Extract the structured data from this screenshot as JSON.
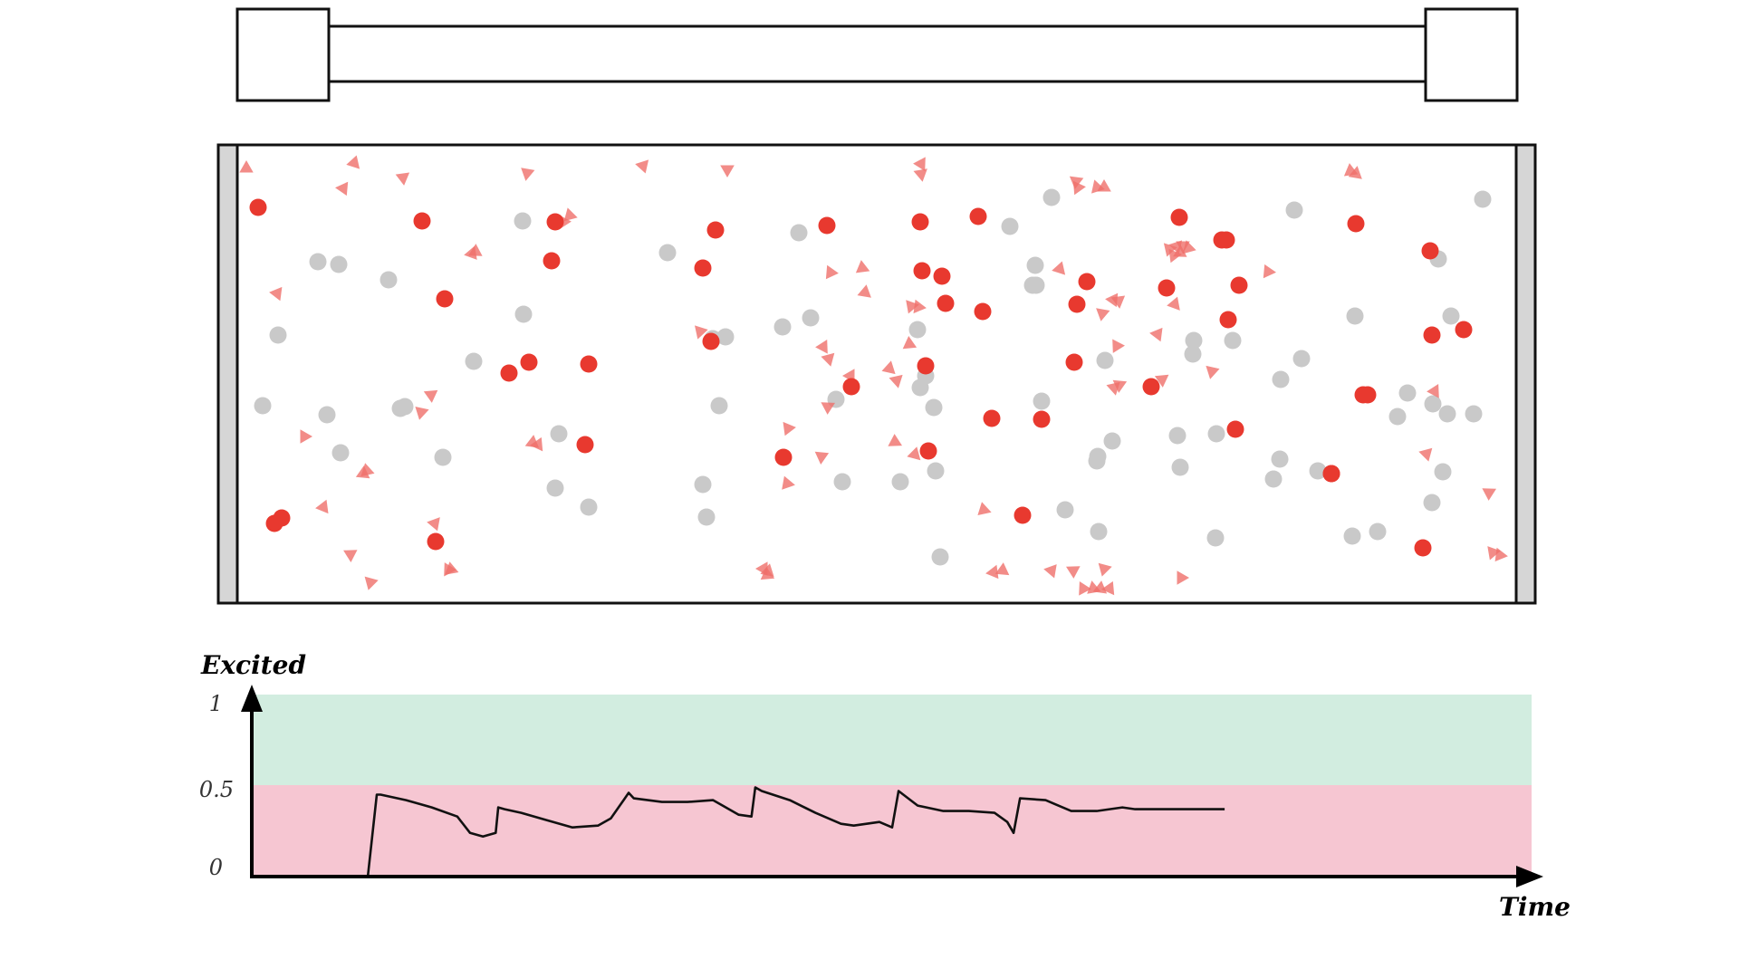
{
  "colors": {
    "background": "#ffffff",
    "outline": "#111111",
    "wall_fill": "#d6d6d6",
    "excited_particle": "#e8392f",
    "ground_particle": "#c9c9c9",
    "photon": "#ef6f6a",
    "upper_band": "#d2ede0",
    "lower_band": "#f6c6d2",
    "trace": "#111111"
  },
  "particles": {
    "excited_count": 49,
    "ground_count": 72,
    "photon_count": 88
  },
  "graph": {
    "y_axis_title": "Excited",
    "x_axis_title": "Time",
    "y_ticks": [
      "1",
      "0.5",
      "0"
    ],
    "threshold": 0.5,
    "y_range": [
      0,
      1
    ]
  },
  "chart_data": {
    "type": "line",
    "title": "",
    "xlabel": "Time",
    "ylabel": "Excited",
    "ylim": [
      0,
      1
    ],
    "xlim": [
      0,
      1
    ],
    "grid": false,
    "legend": "none",
    "series": [
      {
        "x": [
          0.0,
          0.09,
          0.097,
          0.1,
          0.12,
          0.14,
          0.16,
          0.17,
          0.18,
          0.19,
          0.192,
          0.197,
          0.21,
          0.23,
          0.25,
          0.27,
          0.28,
          0.29,
          0.294,
          0.298,
          0.32,
          0.34,
          0.36,
          0.38,
          0.39,
          0.393,
          0.398,
          0.42,
          0.44,
          0.46,
          0.47,
          0.49,
          0.5,
          0.505,
          0.52,
          0.54,
          0.56,
          0.58,
          0.59,
          0.595,
          0.6,
          0.62,
          0.64,
          0.66,
          0.68,
          0.69,
          0.7,
          0.72,
          0.74,
          0.76
        ],
        "values": [
          0.0,
          0.0,
          0.45,
          0.45,
          0.42,
          0.38,
          0.33,
          0.24,
          0.22,
          0.24,
          0.38,
          0.37,
          0.35,
          0.31,
          0.27,
          0.28,
          0.32,
          0.42,
          0.46,
          0.43,
          0.41,
          0.41,
          0.42,
          0.34,
          0.33,
          0.49,
          0.47,
          0.42,
          0.35,
          0.29,
          0.28,
          0.3,
          0.27,
          0.47,
          0.39,
          0.36,
          0.36,
          0.35,
          0.3,
          0.24,
          0.43,
          0.42,
          0.36,
          0.36,
          0.38,
          0.37,
          0.37,
          0.37,
          0.37,
          0.37
        ]
      }
    ]
  }
}
